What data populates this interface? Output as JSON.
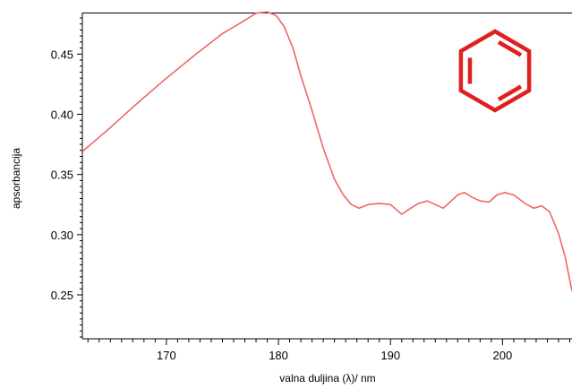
{
  "chart_data": {
    "type": "line",
    "title": "",
    "xlabel": "valna duljina (λ)/ nm",
    "ylabel": "apsorbancija",
    "xlim": [
      162.5,
      206.2
    ],
    "ylim": [
      0.2135,
      0.4845
    ],
    "x_ticks": [
      170,
      180,
      190,
      200
    ],
    "x_tick_labels": [
      "170",
      "180",
      "190",
      "200"
    ],
    "y_ticks": [
      0.25,
      0.3,
      0.35,
      0.4,
      0.45
    ],
    "y_tick_labels": [
      "0.25",
      "0.30",
      "0.35",
      "0.40",
      "0.45"
    ],
    "grid": false,
    "legend": "none",
    "series": [
      {
        "color": "#f06666",
        "x": [
          162.5,
          165.0,
          167.5,
          170.0,
          172.5,
          175.0,
          177.0,
          178.0,
          179.0,
          179.8,
          180.5,
          181.3,
          182.0,
          183.0,
          184.0,
          185.0,
          185.8,
          186.5,
          187.2,
          188.0,
          189.0,
          190.0,
          191.0,
          191.8,
          192.5,
          193.3,
          194.0,
          194.7,
          195.3,
          196.0,
          196.6,
          197.3,
          198.0,
          198.8,
          199.5,
          200.2,
          201.0,
          202.0,
          202.8,
          203.5,
          204.2,
          205.0,
          205.6,
          206.2
        ],
        "y": [
          0.369,
          0.389,
          0.41,
          0.43,
          0.449,
          0.467,
          0.478,
          0.484,
          0.485,
          0.482,
          0.473,
          0.455,
          0.432,
          0.403,
          0.372,
          0.346,
          0.333,
          0.325,
          0.322,
          0.325,
          0.326,
          0.325,
          0.317,
          0.322,
          0.326,
          0.328,
          0.325,
          0.322,
          0.327,
          0.333,
          0.335,
          0.331,
          0.328,
          0.327,
          0.333,
          0.335,
          0.333,
          0.326,
          0.322,
          0.324,
          0.319,
          0.301,
          0.281,
          0.253
        ]
      }
    ]
  },
  "inset": {
    "name": "benzene-ring",
    "color": "#e01f1f"
  }
}
